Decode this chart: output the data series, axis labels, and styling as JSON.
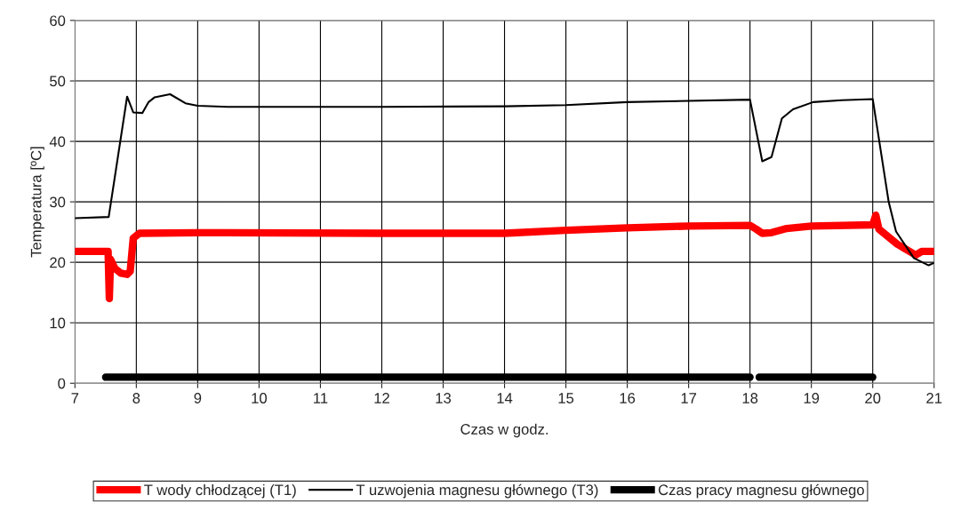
{
  "chart_data": {
    "type": "line",
    "xlabel": "Czas w godz.",
    "ylabel": "Temperatura [ºC]",
    "xlim": [
      7,
      21
    ],
    "xticks": [
      7,
      8,
      9,
      10,
      11,
      12,
      13,
      14,
      15,
      16,
      17,
      18,
      19,
      20,
      21
    ],
    "ylim": [
      0,
      60
    ],
    "yticks": [
      0,
      10,
      20,
      30,
      40,
      50,
      60
    ],
    "grid": true,
    "legend": "bottom",
    "marker": "none",
    "line_style": "solid",
    "series": [
      {
        "name": "T wody chłodzącej (T1)",
        "color": "#ff0000",
        "x": [
          7.0,
          7.5,
          7.54,
          7.56,
          7.58,
          7.65,
          7.75,
          7.85,
          7.9,
          7.95,
          8.05,
          9.0,
          12.0,
          14.0,
          15.0,
          16.0,
          17.0,
          18.0,
          18.1,
          18.2,
          18.35,
          18.6,
          19.0,
          20.0,
          20.05,
          20.1,
          20.4,
          20.7,
          20.8,
          21.0
        ],
        "values": [
          21.8,
          21.8,
          21.8,
          14.0,
          20.5,
          19.0,
          18.2,
          18.0,
          18.5,
          24.0,
          24.8,
          24.9,
          24.8,
          24.8,
          25.3,
          25.7,
          26.0,
          26.1,
          25.5,
          24.8,
          24.9,
          25.6,
          26.0,
          26.2,
          27.8,
          25.5,
          23.0,
          21.2,
          21.8,
          21.8
        ]
      },
      {
        "name": "T uzwojenia magnesu głównego (T3)",
        "color": "#000000",
        "x": [
          7.0,
          7.55,
          7.85,
          7.95,
          8.1,
          8.2,
          8.3,
          8.55,
          8.8,
          9.0,
          9.5,
          12.0,
          14.0,
          15.0,
          16.0,
          18.0,
          18.2,
          18.35,
          18.52,
          18.7,
          19.03,
          19.5,
          20.0,
          20.26,
          20.38,
          20.67,
          20.91,
          21.0
        ],
        "values": [
          27.3,
          27.5,
          47.4,
          44.8,
          44.7,
          46.5,
          47.3,
          47.8,
          46.3,
          45.9,
          45.7,
          45.7,
          45.8,
          46.0,
          46.5,
          46.9,
          36.7,
          37.4,
          43.8,
          45.3,
          46.5,
          46.8,
          47.0,
          30.0,
          25.1,
          20.7,
          19.5,
          19.9
        ]
      },
      {
        "name": "Czas pracy magnesu głównego",
        "color": "#000000",
        "x": [
          7.5,
          18.0,
          18.07,
          18.15,
          20.0
        ],
        "values": [
          1,
          1,
          null,
          1,
          1
        ]
      }
    ]
  }
}
